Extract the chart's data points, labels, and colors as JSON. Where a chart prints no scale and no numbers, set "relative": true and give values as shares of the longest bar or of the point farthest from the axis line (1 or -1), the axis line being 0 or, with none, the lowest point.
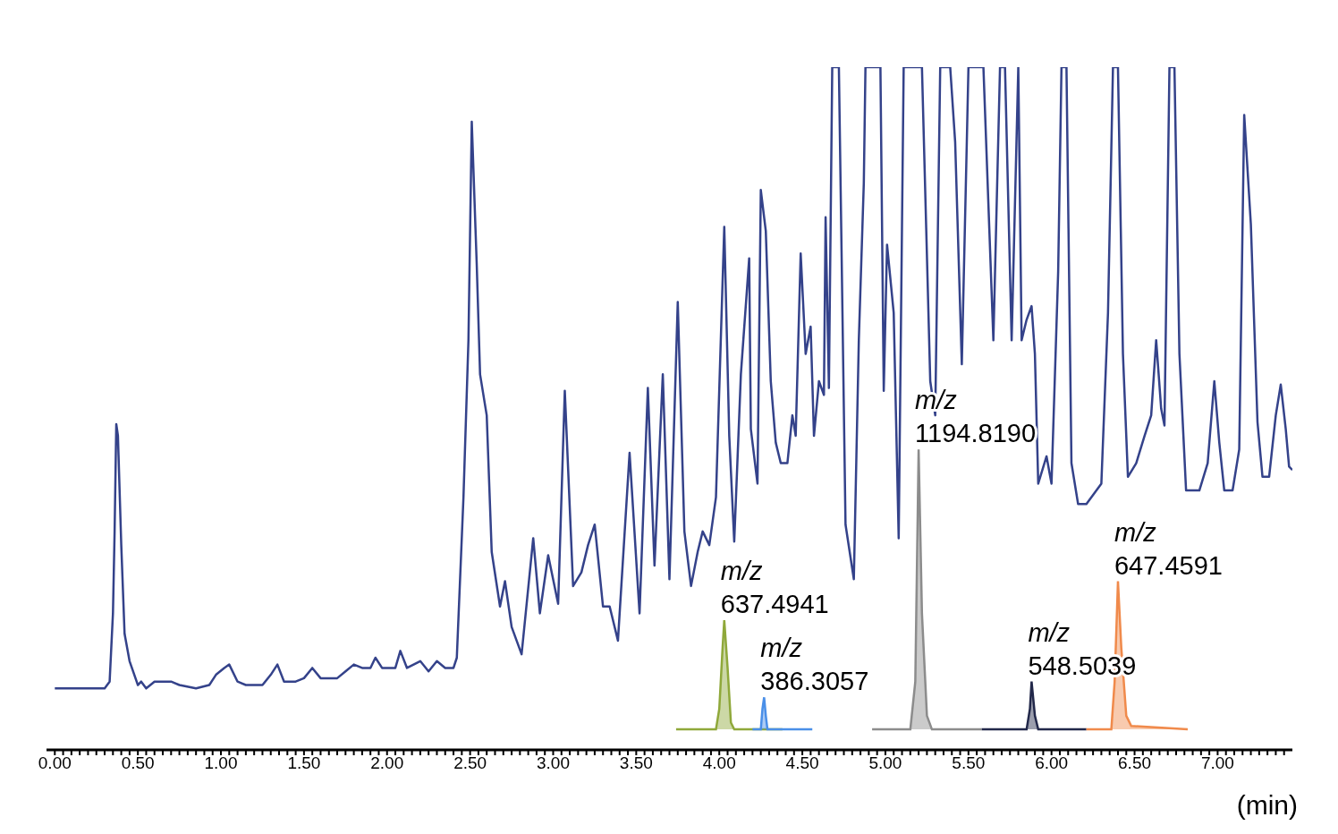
{
  "chart_data": {
    "type": "line",
    "relative": true,
    "xlabel": "(min)",
    "xlim": [
      -0.05,
      7.45
    ],
    "xticks": [
      {
        "value": 0,
        "label": "0.00"
      },
      {
        "value": 0.05,
        "label": null
      },
      {
        "value": 0.1,
        "label": null
      },
      {
        "value": 0.15,
        "label": null
      },
      {
        "value": 0.2,
        "label": null
      },
      {
        "value": 0.25,
        "label": null
      },
      {
        "value": 0.3,
        "label": null
      },
      {
        "value": 0.35,
        "label": null
      },
      {
        "value": 0.4,
        "label": null
      },
      {
        "value": 0.45,
        "label": null
      },
      {
        "value": 0.5,
        "label": "0.50"
      },
      {
        "value": 0.55,
        "label": null
      },
      {
        "value": 0.6,
        "label": null
      },
      {
        "value": 0.65,
        "label": null
      },
      {
        "value": 0.7,
        "label": null
      },
      {
        "value": 0.75,
        "label": null
      },
      {
        "value": 0.8,
        "label": null
      },
      {
        "value": 0.85,
        "label": null
      },
      {
        "value": 0.9,
        "label": null
      },
      {
        "value": 0.95,
        "label": null
      },
      {
        "value": 1,
        "label": "1.00"
      },
      {
        "value": 1.05,
        "label": null
      },
      {
        "value": 1.1,
        "label": null
      },
      {
        "value": 1.15,
        "label": null
      },
      {
        "value": 1.2,
        "label": null
      },
      {
        "value": 1.25,
        "label": null
      },
      {
        "value": 1.3,
        "label": null
      },
      {
        "value": 1.35,
        "label": null
      },
      {
        "value": 1.4,
        "label": null
      },
      {
        "value": 1.45,
        "label": null
      },
      {
        "value": 1.5,
        "label": "1.50"
      },
      {
        "value": 1.55,
        "label": null
      },
      {
        "value": 1.6,
        "label": null
      },
      {
        "value": 1.65,
        "label": null
      },
      {
        "value": 1.7,
        "label": null
      },
      {
        "value": 1.75,
        "label": null
      },
      {
        "value": 1.8,
        "label": null
      },
      {
        "value": 1.85,
        "label": null
      },
      {
        "value": 1.9,
        "label": null
      },
      {
        "value": 1.95,
        "label": null
      },
      {
        "value": 2,
        "label": "2.00"
      },
      {
        "value": 2.05,
        "label": null
      },
      {
        "value": 2.1,
        "label": null
      },
      {
        "value": 2.15,
        "label": null
      },
      {
        "value": 2.2,
        "label": null
      },
      {
        "value": 2.25,
        "label": null
      },
      {
        "value": 2.3,
        "label": null
      },
      {
        "value": 2.35,
        "label": null
      },
      {
        "value": 2.4,
        "label": null
      },
      {
        "value": 2.45,
        "label": null
      },
      {
        "value": 2.5,
        "label": "2.50"
      },
      {
        "value": 2.55,
        "label": null
      },
      {
        "value": 2.6,
        "label": null
      },
      {
        "value": 2.65,
        "label": null
      },
      {
        "value": 2.7,
        "label": null
      },
      {
        "value": 2.75,
        "label": null
      },
      {
        "value": 2.8,
        "label": null
      },
      {
        "value": 2.85,
        "label": null
      },
      {
        "value": 2.9,
        "label": null
      },
      {
        "value": 2.95,
        "label": null
      },
      {
        "value": 3,
        "label": "3.00"
      },
      {
        "value": 3.05,
        "label": null
      },
      {
        "value": 3.1,
        "label": null
      },
      {
        "value": 3.15,
        "label": null
      },
      {
        "value": 3.2,
        "label": null
      },
      {
        "value": 3.25,
        "label": null
      },
      {
        "value": 3.3,
        "label": null
      },
      {
        "value": 3.35,
        "label": null
      },
      {
        "value": 3.4,
        "label": null
      },
      {
        "value": 3.45,
        "label": null
      },
      {
        "value": 3.5,
        "label": "3.50"
      },
      {
        "value": 3.55,
        "label": null
      },
      {
        "value": 3.6,
        "label": null
      },
      {
        "value": 3.65,
        "label": null
      },
      {
        "value": 3.7,
        "label": null
      },
      {
        "value": 3.75,
        "label": null
      },
      {
        "value": 3.8,
        "label": null
      },
      {
        "value": 3.85,
        "label": null
      },
      {
        "value": 3.9,
        "label": null
      },
      {
        "value": 3.95,
        "label": null
      },
      {
        "value": 4,
        "label": "4.00"
      },
      {
        "value": 4.05,
        "label": null
      },
      {
        "value": 4.1,
        "label": null
      },
      {
        "value": 4.15,
        "label": null
      },
      {
        "value": 4.2,
        "label": null
      },
      {
        "value": 4.25,
        "label": null
      },
      {
        "value": 4.3,
        "label": null
      },
      {
        "value": 4.35,
        "label": null
      },
      {
        "value": 4.4,
        "label": null
      },
      {
        "value": 4.45,
        "label": null
      },
      {
        "value": 4.5,
        "label": "4.50"
      },
      {
        "value": 4.55,
        "label": null
      },
      {
        "value": 4.6,
        "label": null
      },
      {
        "value": 4.65,
        "label": null
      },
      {
        "value": 4.7,
        "label": null
      },
      {
        "value": 4.75,
        "label": null
      },
      {
        "value": 4.8,
        "label": null
      },
      {
        "value": 4.85,
        "label": null
      },
      {
        "value": 4.9,
        "label": null
      },
      {
        "value": 4.95,
        "label": null
      },
      {
        "value": 5,
        "label": "5.00"
      },
      {
        "value": 5.05,
        "label": null
      },
      {
        "value": 5.1,
        "label": null
      },
      {
        "value": 5.15,
        "label": null
      },
      {
        "value": 5.2,
        "label": null
      },
      {
        "value": 5.25,
        "label": null
      },
      {
        "value": 5.3,
        "label": null
      },
      {
        "value": 5.35,
        "label": null
      },
      {
        "value": 5.4,
        "label": null
      },
      {
        "value": 5.45,
        "label": null
      },
      {
        "value": 5.5,
        "label": "5.50"
      },
      {
        "value": 5.55,
        "label": null
      },
      {
        "value": 5.6,
        "label": null
      },
      {
        "value": 5.65,
        "label": null
      },
      {
        "value": 5.7,
        "label": null
      },
      {
        "value": 5.75,
        "label": null
      },
      {
        "value": 5.8,
        "label": null
      },
      {
        "value": 5.85,
        "label": null
      },
      {
        "value": 5.9,
        "label": null
      },
      {
        "value": 5.95,
        "label": null
      },
      {
        "value": 6,
        "label": "6.00"
      },
      {
        "value": 6.05,
        "label": null
      },
      {
        "value": 6.1,
        "label": null
      },
      {
        "value": 6.15,
        "label": null
      },
      {
        "value": 6.2,
        "label": null
      },
      {
        "value": 6.25,
        "label": null
      },
      {
        "value": 6.3,
        "label": null
      },
      {
        "value": 6.35,
        "label": null
      },
      {
        "value": 6.4,
        "label": null
      },
      {
        "value": 6.45,
        "label": null
      },
      {
        "value": 6.5,
        "label": "6.50"
      },
      {
        "value": 6.55,
        "label": null
      },
      {
        "value": 6.6,
        "label": null
      },
      {
        "value": 6.65,
        "label": null
      },
      {
        "value": 6.7,
        "label": null
      },
      {
        "value": 6.75,
        "label": null
      },
      {
        "value": 6.8,
        "label": null
      },
      {
        "value": 6.85,
        "label": null
      },
      {
        "value": 6.9,
        "label": null
      },
      {
        "value": 6.95,
        "label": null
      },
      {
        "value": 7,
        "label": "7.00"
      },
      {
        "value": 7.05,
        "label": null
      },
      {
        "value": 7.1,
        "label": null
      },
      {
        "value": 7.15,
        "label": null
      },
      {
        "value": 7.2,
        "label": null
      },
      {
        "value": 7.25,
        "label": null
      },
      {
        "value": 7.3,
        "label": null
      },
      {
        "value": 7.35,
        "label": null
      },
      {
        "value": 7.4,
        "label": null
      }
    ],
    "series": [
      {
        "color": "#34428a",
        "x": [
          0,
          0.3,
          0.33,
          0.35,
          0.36,
          0.37,
          0.38,
          0.4,
          0.42,
          0.45,
          0.5,
          0.52,
          0.55,
          0.6,
          0.7,
          0.75,
          0.85,
          0.93,
          0.97,
          1.02,
          1.05,
          1.1,
          1.15,
          1.25,
          1.3,
          1.34,
          1.38,
          1.45,
          1.5,
          1.55,
          1.6,
          1.7,
          1.75,
          1.8,
          1.85,
          1.9,
          1.93,
          1.97,
          2.05,
          2.08,
          2.12,
          2.2,
          2.25,
          2.3,
          2.35,
          2.4,
          2.42,
          2.46,
          2.49,
          2.51,
          2.54,
          2.56,
          2.6,
          2.63,
          2.68,
          2.71,
          2.75,
          2.81,
          2.88,
          2.92,
          2.97,
          3.03,
          3.07,
          3.12,
          3.17,
          3.21,
          3.25,
          3.3,
          3.34,
          3.39,
          3.46,
          3.52,
          3.57,
          3.61,
          3.66,
          3.7,
          3.75,
          3.79,
          3.83,
          3.87,
          3.9,
          3.94,
          3.98,
          4.03,
          4.06,
          4.09,
          4.13,
          4.18,
          4.19,
          4.23,
          4.25,
          4.28,
          4.31,
          4.34,
          4.37,
          4.41,
          4.44,
          4.46,
          4.49,
          4.52,
          4.55,
          4.57,
          4.6,
          4.63,
          4.64,
          4.66,
          4.68,
          4.72,
          4.76,
          4.81,
          4.84,
          4.87,
          4.88,
          4.97,
          4.99,
          5.01,
          5.05,
          5.08,
          5.11,
          5.22,
          5.27,
          5.3,
          5.33,
          5.39,
          5.42,
          5.46,
          5.49,
          5.5,
          5.59,
          5.65,
          5.69,
          5.72,
          5.76,
          5.8,
          5.82,
          5.85,
          5.88,
          5.9,
          5.92,
          5.97,
          6,
          6.04,
          6.06,
          6.09,
          6.12,
          6.16,
          6.21,
          6.3,
          6.34,
          6.37,
          6.4,
          6.43,
          6.46,
          6.51,
          6.56,
          6.6,
          6.63,
          6.66,
          6.68,
          6.71,
          6.74,
          6.77,
          6.81,
          6.89,
          6.94,
          6.98,
          7.01,
          7.04,
          7.09,
          7.13,
          7.16,
          7.2,
          7.24,
          7.27,
          7.31,
          7.35,
          7.38,
          7.41,
          7.43,
          7.45
        ],
        "values": [
          0.09,
          0.09,
          0.1,
          0.2,
          0.32,
          0.477,
          0.46,
          0.3,
          0.17,
          0.13,
          0.095,
          0.1,
          0.09,
          0.1,
          0.1,
          0.095,
          0.09,
          0.095,
          0.11,
          0.12,
          0.125,
          0.1,
          0.095,
          0.095,
          0.11,
          0.125,
          0.1,
          0.1,
          0.105,
          0.12,
          0.105,
          0.105,
          0.115,
          0.125,
          0.12,
          0.12,
          0.135,
          0.12,
          0.12,
          0.145,
          0.12,
          0.13,
          0.115,
          0.13,
          0.12,
          0.12,
          0.135,
          0.37,
          0.6,
          0.92,
          0.71,
          0.55,
          0.49,
          0.29,
          0.21,
          0.247,
          0.18,
          0.14,
          0.31,
          0.2,
          0.285,
          0.214,
          0.526,
          0.24,
          0.26,
          0.3,
          0.33,
          0.21,
          0.21,
          0.16,
          0.435,
          0.2,
          0.53,
          0.27,
          0.55,
          0.25,
          0.656,
          0.32,
          0.24,
          0.29,
          0.32,
          0.3,
          0.37,
          0.766,
          0.46,
          0.305,
          0.55,
          0.72,
          0.47,
          0.39,
          0.82,
          0.76,
          0.54,
          0.45,
          0.42,
          0.42,
          0.49,
          0.46,
          0.727,
          0.58,
          0.62,
          0.46,
          0.54,
          0.52,
          0.78,
          0.53,
          1,
          1,
          0.33,
          0.25,
          0.6,
          0.83,
          1,
          1,
          0.526,
          0.74,
          0.64,
          0.31,
          1,
          1,
          0.54,
          0.49,
          1,
          1,
          0.89,
          0.565,
          0.89,
          1,
          1,
          0.6,
          1,
          1,
          0.6,
          1,
          0.6,
          0.63,
          0.65,
          0.58,
          0.39,
          0.43,
          0.39,
          0.7,
          1,
          1,
          0.42,
          0.36,
          0.36,
          0.39,
          0.64,
          1,
          1,
          0.58,
          0.4,
          0.42,
          0.46,
          0.49,
          0.6,
          0.5,
          0.475,
          1,
          1,
          0.58,
          0.38,
          0.38,
          0.42,
          0.54,
          0.45,
          0.38,
          0.38,
          0.44,
          0.93,
          0.77,
          0.48,
          0.4,
          0.4,
          0.49,
          0.535,
          0.47,
          0.415,
          0.41
        ]
      },
      {
        "type": "area",
        "color": "#8fa83a",
        "x": [
          3.74,
          3.98,
          4,
          4.02,
          4.03,
          4.05,
          4.07,
          4.09,
          4.38
        ],
        "values": [
          0.03,
          0.03,
          0.06,
          0.15,
          0.19,
          0.12,
          0.04,
          0.03,
          0.03
        ]
      },
      {
        "type": "area",
        "color": "#4a8fe8",
        "x": [
          4.2,
          4.25,
          4.26,
          4.27,
          4.28,
          4.29,
          4.56
        ],
        "values": [
          0.03,
          0.03,
          0.06,
          0.077,
          0.05,
          0.03,
          0.03
        ]
      },
      {
        "type": "area",
        "color": "#8c8c8c",
        "x": [
          4.92,
          5.15,
          5.18,
          5.2,
          5.22,
          5.25,
          5.28,
          5.58
        ],
        "values": [
          0.03,
          0.03,
          0.1,
          0.44,
          0.2,
          0.05,
          0.03,
          0.03
        ]
      },
      {
        "type": "area",
        "color": "#22284a",
        "x": [
          5.58,
          5.85,
          5.87,
          5.88,
          5.9,
          5.92,
          6.21
        ],
        "values": [
          0.03,
          0.03,
          0.06,
          0.1,
          0.05,
          0.03,
          0.03
        ]
      },
      {
        "type": "area",
        "color": "#f08a4b",
        "x": [
          6.21,
          6.36,
          6.38,
          6.4,
          6.42,
          6.45,
          6.48,
          6.82
        ],
        "values": [
          0.03,
          0.03,
          0.1,
          0.247,
          0.15,
          0.05,
          0.035,
          0.03
        ]
      }
    ],
    "annotations": [
      {
        "text": "m/z 637.4941",
        "x": 4.03,
        "y": 0.19
      },
      {
        "text": "m/z 386.3057",
        "x": 4.27,
        "y": 0.077
      },
      {
        "text": "m/z 1194.8190",
        "x": 5.2,
        "y": 0.44
      },
      {
        "text": "m/z 548.5039",
        "x": 5.88,
        "y": 0.1
      },
      {
        "text": "m/z 647.4591",
        "x": 6.4,
        "y": 0.247
      }
    ]
  }
}
